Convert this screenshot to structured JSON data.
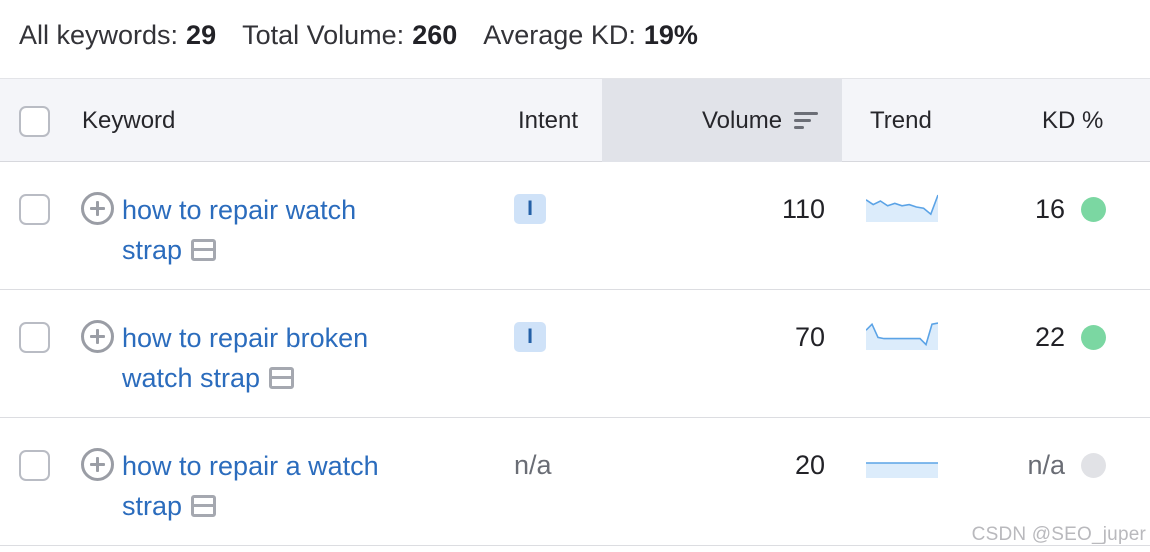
{
  "summary": {
    "all_keywords_label": "All keywords:",
    "all_keywords_value": "29",
    "total_volume_label": "Total Volume:",
    "total_volume_value": "260",
    "average_kd_label": "Average KD:",
    "average_kd_value": "19%"
  },
  "table": {
    "headers": {
      "keyword": "Keyword",
      "intent": "Intent",
      "volume": "Volume",
      "trend": "Trend",
      "kd": "KD %"
    },
    "sorted_by": "volume",
    "rows": [
      {
        "keyword_line1": "how to repair watch",
        "keyword_line2": "strap",
        "intent": "I",
        "volume": "110",
        "trend": [
          0.8,
          0.6,
          0.75,
          0.55,
          0.65,
          0.55,
          0.6,
          0.5,
          0.45,
          0.2,
          1.0
        ],
        "kd": "16",
        "kd_color": "#7bd7a2"
      },
      {
        "keyword_line1": "how to repair broken",
        "keyword_line2": "watch strap",
        "intent": "I",
        "volume": "70",
        "trend": [
          0.7,
          0.95,
          0.4,
          0.35,
          0.35,
          0.35,
          0.35,
          0.35,
          0.35,
          0.35,
          0.1,
          0.95,
          1.0
        ],
        "kd": "22",
        "kd_color": "#7bd7a2"
      },
      {
        "keyword_line1": "how to repair a watch",
        "keyword_line2": "strap",
        "intent": "n/a",
        "volume": "20",
        "trend": [
          0.5,
          0.5,
          0.5,
          0.5,
          0.5,
          0.5
        ],
        "kd": "n/a",
        "kd_color": "#e1e2e6"
      }
    ]
  },
  "colors": {
    "link": "#2b6cbd",
    "trend_line": "#5ba3e6",
    "trend_fill": "#dcecfb"
  },
  "watermark": "CSDN @SEO_juper"
}
